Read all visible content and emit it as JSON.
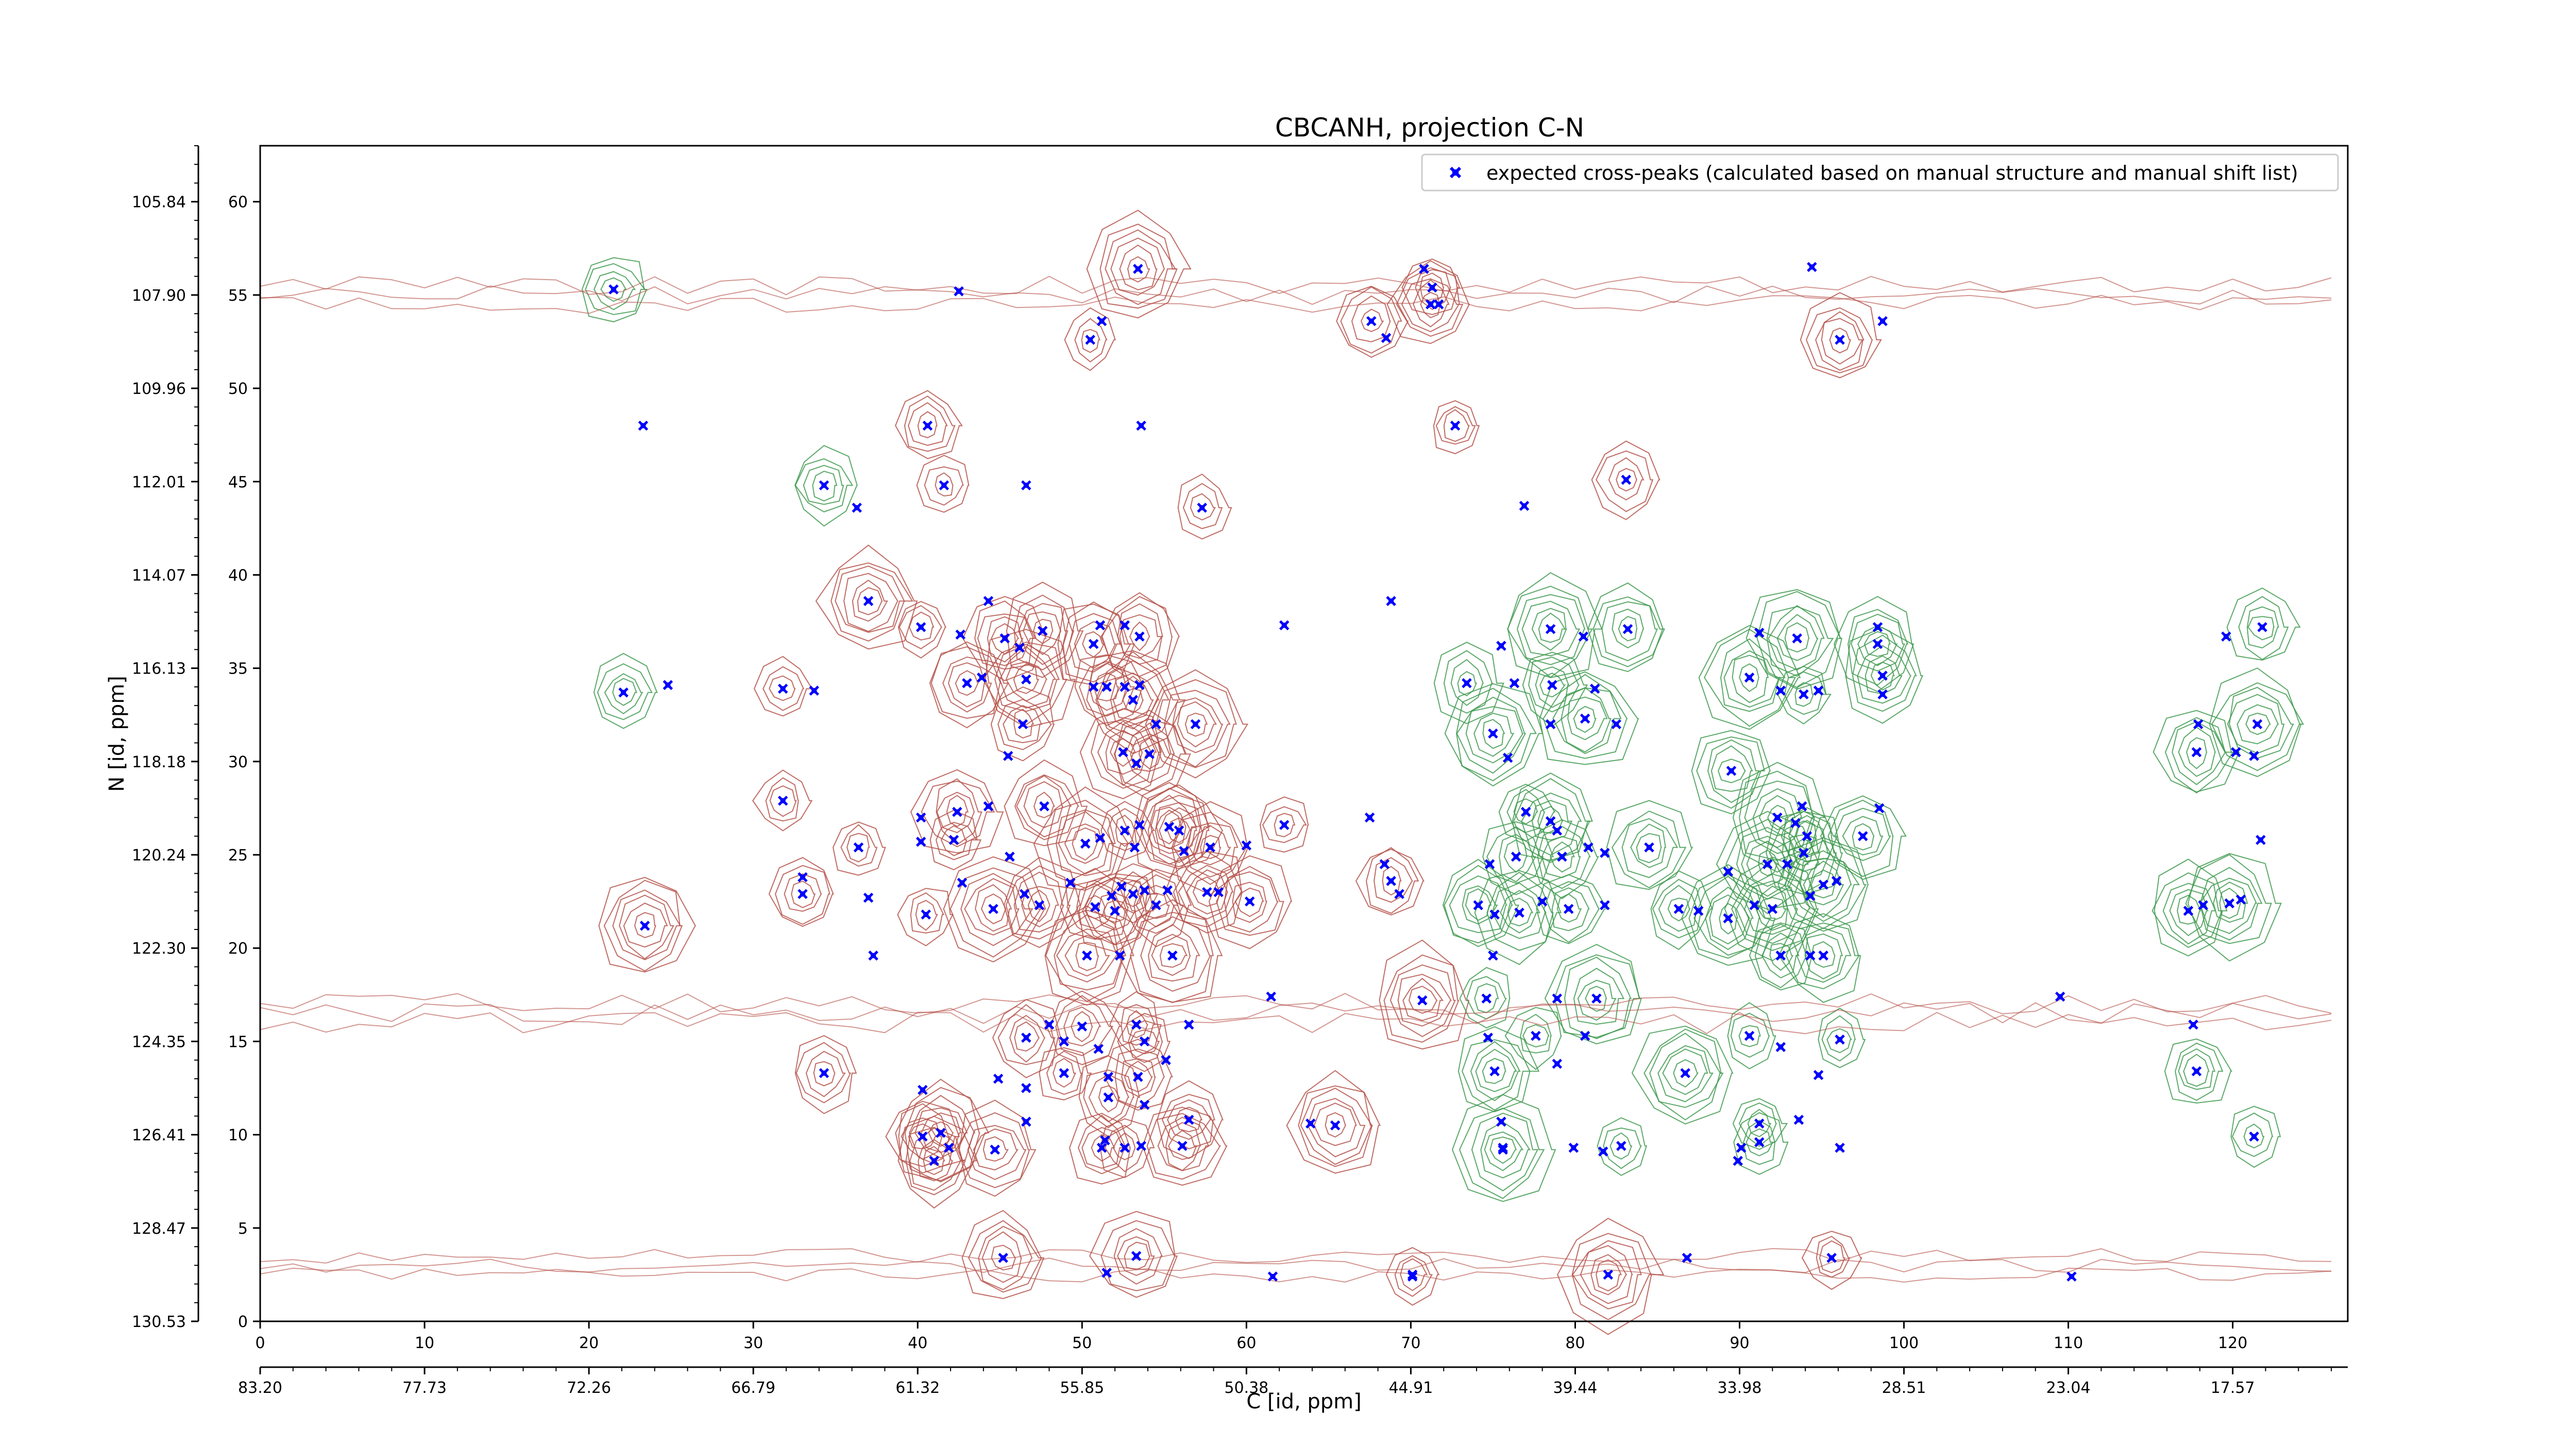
{
  "chart_data": {
    "type": "scatter",
    "title": "CBCANH, projection C-N",
    "xlabel": "C [id, ppm]",
    "ylabel": "N [id, ppm]",
    "xlim": [
      0,
      127
    ],
    "ylim": [
      0,
      63
    ],
    "x_ticks": [
      "0",
      "10",
      "20",
      "30",
      "40",
      "50",
      "60",
      "70",
      "80",
      "90",
      "100",
      "110",
      "120"
    ],
    "y_ticks": [
      "0",
      "5",
      "10",
      "15",
      "20",
      "25",
      "30",
      "35",
      "40",
      "45",
      "50",
      "55",
      "60"
    ],
    "x_ppm_ticks": [
      "83.20",
      "77.73",
      "72.26",
      "66.79",
      "61.32",
      "55.85",
      "50.38",
      "44.91",
      "39.44",
      "33.98",
      "28.51",
      "23.04",
      "17.57"
    ],
    "y_ppm_ticks": [
      "130.53",
      "128.47",
      "126.41",
      "124.35",
      "122.30",
      "120.24",
      "118.18",
      "116.13",
      "114.07",
      "112.01",
      "109.96",
      "107.90",
      "105.84"
    ],
    "legend": {
      "label": "expected cross-peaks (calculated based on manual structure and manual shift list)",
      "position": "top-right"
    },
    "colors": {
      "marker": "#0000ff",
      "negative_contour": "#b5524a",
      "positive_contour": "#3f9a4f"
    },
    "series": [
      {
        "name": "expected cross-peaks (calculated based on manual structure and manual shift list)",
        "points": [
          [
            21.5,
            55.3
          ],
          [
            42.5,
            55.2
          ],
          [
            53.4,
            56.4
          ],
          [
            51.2,
            53.6
          ],
          [
            50.5,
            52.6
          ],
          [
            68.5,
            52.7
          ],
          [
            67.6,
            53.6
          ],
          [
            70.8,
            56.4
          ],
          [
            71.2,
            54.5
          ],
          [
            71.7,
            54.5
          ],
          [
            71.3,
            55.4
          ],
          [
            94.4,
            56.5
          ],
          [
            96.1,
            52.6
          ],
          [
            98.7,
            53.6
          ],
          [
            72.7,
            48.0
          ],
          [
            53.6,
            48.0
          ],
          [
            40.6,
            48.0
          ],
          [
            23.3,
            48.0
          ],
          [
            34.3,
            44.8
          ],
          [
            36.3,
            43.6
          ],
          [
            41.6,
            44.8
          ],
          [
            46.6,
            44.8
          ],
          [
            57.3,
            43.6
          ],
          [
            76.9,
            43.7
          ],
          [
            83.1,
            45.1
          ],
          [
            44.3,
            38.6
          ],
          [
            37.0,
            38.6
          ],
          [
            68.8,
            38.6
          ],
          [
            40.2,
            37.2
          ],
          [
            42.6,
            36.8
          ],
          [
            45.3,
            36.6
          ],
          [
            46.2,
            36.1
          ],
          [
            47.6,
            37.0
          ],
          [
            51.1,
            37.3
          ],
          [
            50.7,
            36.3
          ],
          [
            52.6,
            37.3
          ],
          [
            53.5,
            36.7
          ],
          [
            62.3,
            37.3
          ],
          [
            78.5,
            37.1
          ],
          [
            80.5,
            36.7
          ],
          [
            83.2,
            37.1
          ],
          [
            91.2,
            36.9
          ],
          [
            93.5,
            36.6
          ],
          [
            98.4,
            37.2
          ],
          [
            98.4,
            36.3
          ],
          [
            75.5,
            36.2
          ],
          [
            121.8,
            37.2
          ],
          [
            119.6,
            36.7
          ],
          [
            22.1,
            33.7
          ],
          [
            24.8,
            34.1
          ],
          [
            31.8,
            33.9
          ],
          [
            33.7,
            33.8
          ],
          [
            43.0,
            34.2
          ],
          [
            43.9,
            34.5
          ],
          [
            46.6,
            34.4
          ],
          [
            50.7,
            34.0
          ],
          [
            51.5,
            34.0
          ],
          [
            52.6,
            34.0
          ],
          [
            53.1,
            33.3
          ],
          [
            53.5,
            34.1
          ],
          [
            90.6,
            34.5
          ],
          [
            92.5,
            33.8
          ],
          [
            93.9,
            33.6
          ],
          [
            94.8,
            33.8
          ],
          [
            98.7,
            34.6
          ],
          [
            98.7,
            33.6
          ],
          [
            73.4,
            34.2
          ],
          [
            76.3,
            34.2
          ],
          [
            78.6,
            34.1
          ],
          [
            81.2,
            33.9
          ],
          [
            46.4,
            32.0
          ],
          [
            54.5,
            32.0
          ],
          [
            56.9,
            32.0
          ],
          [
            82.5,
            32.0
          ],
          [
            80.6,
            32.3
          ],
          [
            117.9,
            32.0
          ],
          [
            121.5,
            32.0
          ],
          [
            78.5,
            32.0
          ],
          [
            75.0,
            31.5
          ],
          [
            45.5,
            30.3
          ],
          [
            52.5,
            30.5
          ],
          [
            53.3,
            29.9
          ],
          [
            54.1,
            30.4
          ],
          [
            120.2,
            30.5
          ],
          [
            117.8,
            30.5
          ],
          [
            121.3,
            30.3
          ],
          [
            89.5,
            29.5
          ],
          [
            75.9,
            30.2
          ],
          [
            31.8,
            27.9
          ],
          [
            40.2,
            27.0
          ],
          [
            42.4,
            27.3
          ],
          [
            44.3,
            27.6
          ],
          [
            47.7,
            27.6
          ],
          [
            53.5,
            26.6
          ],
          [
            55.9,
            26.3
          ],
          [
            60.0,
            25.5
          ],
          [
            62.3,
            26.6
          ],
          [
            67.5,
            27.0
          ],
          [
            77.0,
            27.3
          ],
          [
            78.9,
            26.3
          ],
          [
            79.2,
            24.9
          ],
          [
            80.8,
            25.4
          ],
          [
            78.5,
            26.8
          ],
          [
            93.8,
            27.6
          ],
          [
            92.3,
            27.0
          ],
          [
            93.4,
            26.7
          ],
          [
            94.1,
            26.0
          ],
          [
            98.5,
            27.5
          ],
          [
            97.5,
            26.0
          ],
          [
            121.7,
            25.8
          ],
          [
            36.4,
            25.4
          ],
          [
            40.2,
            25.7
          ],
          [
            42.2,
            25.8
          ],
          [
            45.6,
            24.9
          ],
          [
            50.2,
            25.6
          ],
          [
            51.1,
            25.9
          ],
          [
            52.6,
            26.3
          ],
          [
            53.2,
            25.4
          ],
          [
            55.3,
            26.5
          ],
          [
            56.2,
            25.2
          ],
          [
            57.8,
            25.4
          ],
          [
            68.4,
            24.5
          ],
          [
            68.8,
            23.6
          ],
          [
            74.8,
            24.5
          ],
          [
            76.4,
            24.9
          ],
          [
            81.8,
            25.1
          ],
          [
            84.5,
            25.4
          ],
          [
            89.3,
            24.1
          ],
          [
            91.7,
            24.5
          ],
          [
            92.9,
            24.5
          ],
          [
            93.9,
            25.1
          ],
          [
            33.0,
            23.8
          ],
          [
            33.0,
            22.9
          ],
          [
            37.0,
            22.7
          ],
          [
            40.5,
            21.8
          ],
          [
            42.7,
            23.5
          ],
          [
            44.6,
            22.1
          ],
          [
            46.5,
            22.9
          ],
          [
            47.4,
            22.3
          ],
          [
            49.3,
            23.5
          ],
          [
            50.8,
            22.2
          ],
          [
            51.8,
            22.8
          ],
          [
            52.0,
            22.0
          ],
          [
            52.4,
            23.3
          ],
          [
            53.1,
            22.9
          ],
          [
            53.8,
            23.1
          ],
          [
            54.5,
            22.3
          ],
          [
            55.2,
            23.1
          ],
          [
            57.6,
            23.0
          ],
          [
            58.3,
            23.0
          ],
          [
            60.2,
            22.5
          ],
          [
            69.3,
            22.9
          ],
          [
            74.1,
            22.3
          ],
          [
            75.1,
            21.8
          ],
          [
            76.6,
            21.9
          ],
          [
            78.0,
            22.5
          ],
          [
            79.6,
            22.1
          ],
          [
            81.8,
            22.3
          ],
          [
            86.3,
            22.1
          ],
          [
            87.5,
            22.0
          ],
          [
            89.3,
            21.6
          ],
          [
            90.9,
            22.3
          ],
          [
            92.0,
            22.1
          ],
          [
            94.3,
            22.8
          ],
          [
            95.1,
            23.4
          ],
          [
            95.9,
            23.6
          ],
          [
            117.3,
            22.0
          ],
          [
            118.2,
            22.3
          ],
          [
            119.8,
            22.4
          ],
          [
            120.5,
            22.6
          ],
          [
            23.4,
            21.2
          ],
          [
            37.3,
            19.6
          ],
          [
            50.3,
            19.6
          ],
          [
            52.3,
            19.6
          ],
          [
            55.5,
            19.6
          ],
          [
            75.0,
            19.6
          ],
          [
            92.5,
            19.6
          ],
          [
            94.3,
            19.6
          ],
          [
            95.1,
            19.6
          ],
          [
            61.5,
            17.4
          ],
          [
            70.7,
            17.2
          ],
          [
            109.5,
            17.4
          ],
          [
            74.6,
            17.3
          ],
          [
            78.9,
            17.3
          ],
          [
            81.3,
            17.3
          ],
          [
            48.0,
            15.9
          ],
          [
            50.0,
            15.8
          ],
          [
            51.0,
            14.6
          ],
          [
            53.3,
            15.9
          ],
          [
            56.5,
            15.9
          ],
          [
            46.6,
            15.2
          ],
          [
            48.9,
            15.0
          ],
          [
            53.8,
            15.0
          ],
          [
            74.7,
            15.2
          ],
          [
            77.6,
            15.3
          ],
          [
            80.6,
            15.3
          ],
          [
            90.6,
            15.3
          ],
          [
            92.5,
            14.7
          ],
          [
            96.1,
            15.1
          ],
          [
            117.6,
            15.9
          ],
          [
            34.3,
            13.3
          ],
          [
            44.9,
            13.0
          ],
          [
            48.9,
            13.3
          ],
          [
            51.6,
            13.1
          ],
          [
            53.4,
            13.1
          ],
          [
            55.1,
            14.0
          ],
          [
            75.1,
            13.4
          ],
          [
            78.9,
            13.8
          ],
          [
            86.7,
            13.3
          ],
          [
            94.8,
            13.2
          ],
          [
            117.8,
            13.4
          ],
          [
            40.3,
            12.4
          ],
          [
            41.4,
            10.1
          ],
          [
            46.6,
            12.5
          ],
          [
            51.6,
            12.0
          ],
          [
            53.8,
            11.6
          ],
          [
            56.5,
            10.8
          ],
          [
            63.9,
            10.6
          ],
          [
            65.4,
            10.5
          ],
          [
            75.5,
            10.7
          ],
          [
            91.2,
            10.6
          ],
          [
            93.6,
            10.8
          ],
          [
            40.3,
            9.9
          ],
          [
            41.9,
            9.3
          ],
          [
            44.7,
            9.2
          ],
          [
            46.6,
            10.7
          ],
          [
            51.2,
            9.3
          ],
          [
            51.4,
            9.7
          ],
          [
            52.6,
            9.3
          ],
          [
            53.6,
            9.4
          ],
          [
            56.1,
            9.4
          ],
          [
            75.6,
            9.3
          ],
          [
            75.6,
            9.2
          ],
          [
            79.9,
            9.3
          ],
          [
            82.8,
            9.4
          ],
          [
            90.1,
            9.3
          ],
          [
            91.2,
            9.6
          ],
          [
            96.1,
            9.3
          ],
          [
            121.3,
            9.9
          ],
          [
            81.7,
            9.1
          ],
          [
            41.0,
            8.6
          ],
          [
            89.9,
            8.6
          ],
          [
            45.2,
            3.4
          ],
          [
            51.5,
            2.6
          ],
          [
            53.3,
            3.5
          ],
          [
            61.6,
            2.4
          ],
          [
            70.1,
            2.5
          ],
          [
            70.1,
            2.4
          ],
          [
            82.0,
            2.5
          ],
          [
            86.8,
            3.4
          ],
          [
            95.6,
            3.4
          ],
          [
            110.2,
            2.4
          ]
        ]
      }
    ],
    "grid": false
  }
}
